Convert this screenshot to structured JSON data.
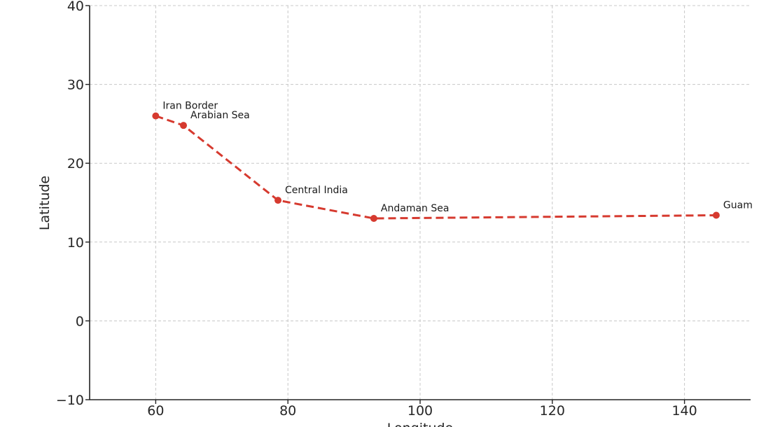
{
  "chart_data": {
    "type": "line",
    "title": "",
    "xlabel": "Longitude",
    "ylabel": "Latitude",
    "xlim": [
      50,
      150
    ],
    "ylim": [
      -10,
      40
    ],
    "xticks": [
      60,
      80,
      100,
      120,
      140
    ],
    "yticks": [
      -10,
      0,
      10,
      20,
      30,
      40
    ],
    "grid": true,
    "series": [
      {
        "color": "#d63a2f",
        "line_style": "dashed",
        "marker": "circle",
        "points": [
          {
            "label": "Iran Border",
            "x": 60,
            "y": 26
          },
          {
            "label": "Arabian Sea",
            "x": 64.2,
            "y": 24.8
          },
          {
            "label": "Central India",
            "x": 78.5,
            "y": 15.3
          },
          {
            "label": "Andaman Sea",
            "x": 93,
            "y": 13
          },
          {
            "label": "Guam",
            "x": 144.8,
            "y": 13.4
          }
        ]
      }
    ]
  }
}
